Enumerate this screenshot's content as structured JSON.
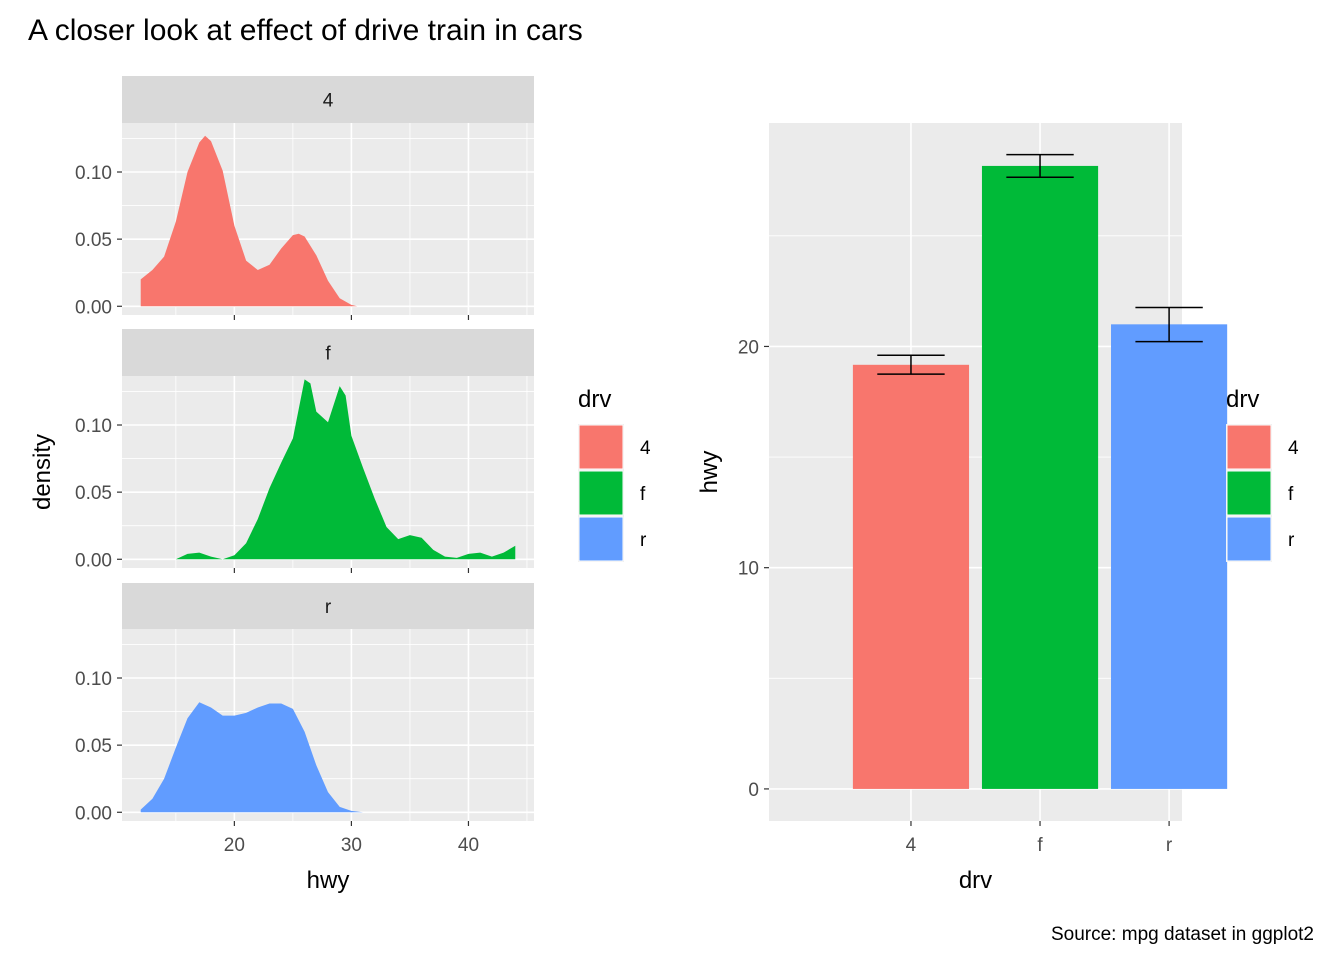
{
  "title": "A closer look at effect of drive train in cars",
  "caption": "Source: mpg dataset in ggplot2",
  "colors": {
    "4": "#F8766D",
    "f": "#00BA38",
    "r": "#619CFF",
    "panel_bg": "#EBEBEB",
    "strip_bg": "#D9D9D9",
    "grid": "#FFFFFF"
  },
  "legend": {
    "title": "drv",
    "items": [
      "4",
      "f",
      "r"
    ]
  },
  "chart_data": [
    {
      "type": "area",
      "subtype": "density (faceted by drv)",
      "xlabel": "hwy",
      "ylabel": "density",
      "xlim": [
        10.4,
        45.6
      ],
      "ylim": [
        -0.0065,
        0.1365
      ],
      "x_ticks": [
        "20",
        "30",
        "40"
      ],
      "x_tick_values": [
        20,
        30,
        40
      ],
      "y_ticks": [
        "0.00",
        "0.05",
        "0.10"
      ],
      "y_tick_values": [
        0,
        0.05,
        0.1
      ],
      "facets": [
        {
          "label": "4",
          "series_key": "4",
          "points": [
            [
              12,
              0.02
            ],
            [
              13,
              0.027
            ],
            [
              14,
              0.037
            ],
            [
              15,
              0.063
            ],
            [
              16,
              0.1
            ],
            [
              17,
              0.122
            ],
            [
              17.5,
              0.127
            ],
            [
              18,
              0.123
            ],
            [
              19,
              0.101
            ],
            [
              20,
              0.06
            ],
            [
              21,
              0.034
            ],
            [
              22,
              0.027
            ],
            [
              23,
              0.031
            ],
            [
              24,
              0.043
            ],
            [
              25,
              0.053
            ],
            [
              25.5,
              0.054
            ],
            [
              26,
              0.052
            ],
            [
              27,
              0.038
            ],
            [
              28,
              0.019
            ],
            [
              29,
              0.006
            ],
            [
              30,
              0.001
            ],
            [
              30.5,
              0
            ]
          ]
        },
        {
          "label": "f",
          "series_key": "f",
          "points": [
            [
              15,
              0
            ],
            [
              16,
              0.004
            ],
            [
              17,
              0.005
            ],
            [
              18,
              0.002
            ],
            [
              19,
              0
            ],
            [
              20,
              0.003
            ],
            [
              21,
              0.012
            ],
            [
              22,
              0.03
            ],
            [
              23,
              0.053
            ],
            [
              24,
              0.072
            ],
            [
              25,
              0.09
            ],
            [
              26,
              0.134
            ],
            [
              26.5,
              0.131
            ],
            [
              27,
              0.11
            ],
            [
              28,
              0.102
            ],
            [
              29,
              0.129
            ],
            [
              29.5,
              0.122
            ],
            [
              30,
              0.092
            ],
            [
              31,
              0.068
            ],
            [
              32,
              0.045
            ],
            [
              33,
              0.024
            ],
            [
              34,
              0.015
            ],
            [
              35,
              0.018
            ],
            [
              36,
              0.016
            ],
            [
              37,
              0.007
            ],
            [
              38,
              0.002
            ],
            [
              39,
              0.001
            ],
            [
              40,
              0.004
            ],
            [
              41,
              0.005
            ],
            [
              42,
              0.002
            ],
            [
              43,
              0.005
            ],
            [
              44,
              0.01
            ]
          ]
        },
        {
          "label": "r",
          "series_key": "r",
          "points": [
            [
              12,
              0.002
            ],
            [
              13,
              0.01
            ],
            [
              14,
              0.025
            ],
            [
              15,
              0.048
            ],
            [
              16,
              0.07
            ],
            [
              17,
              0.082
            ],
            [
              18,
              0.078
            ],
            [
              19,
              0.072
            ],
            [
              20,
              0.072
            ],
            [
              21,
              0.074
            ],
            [
              22,
              0.078
            ],
            [
              23,
              0.081
            ],
            [
              24,
              0.081
            ],
            [
              25,
              0.077
            ],
            [
              26,
              0.06
            ],
            [
              27,
              0.035
            ],
            [
              28,
              0.015
            ],
            [
              29,
              0.004
            ],
            [
              30,
              0.001
            ],
            [
              31,
              0
            ]
          ]
        }
      ]
    },
    {
      "type": "bar",
      "subtype": "bar with error bars",
      "categories": [
        "4",
        "f",
        "r"
      ],
      "values": [
        19.17,
        28.16,
        21.0
      ],
      "error_low": [
        18.75,
        27.65,
        20.22
      ],
      "error_high": [
        19.6,
        28.67,
        21.76
      ],
      "xlabel": "drv",
      "ylabel": "hwy",
      "ylim": [
        -1.45,
        30.1
      ],
      "y_ticks": [
        "0",
        "10",
        "20"
      ],
      "y_tick_values": [
        0,
        10,
        20
      ]
    }
  ]
}
